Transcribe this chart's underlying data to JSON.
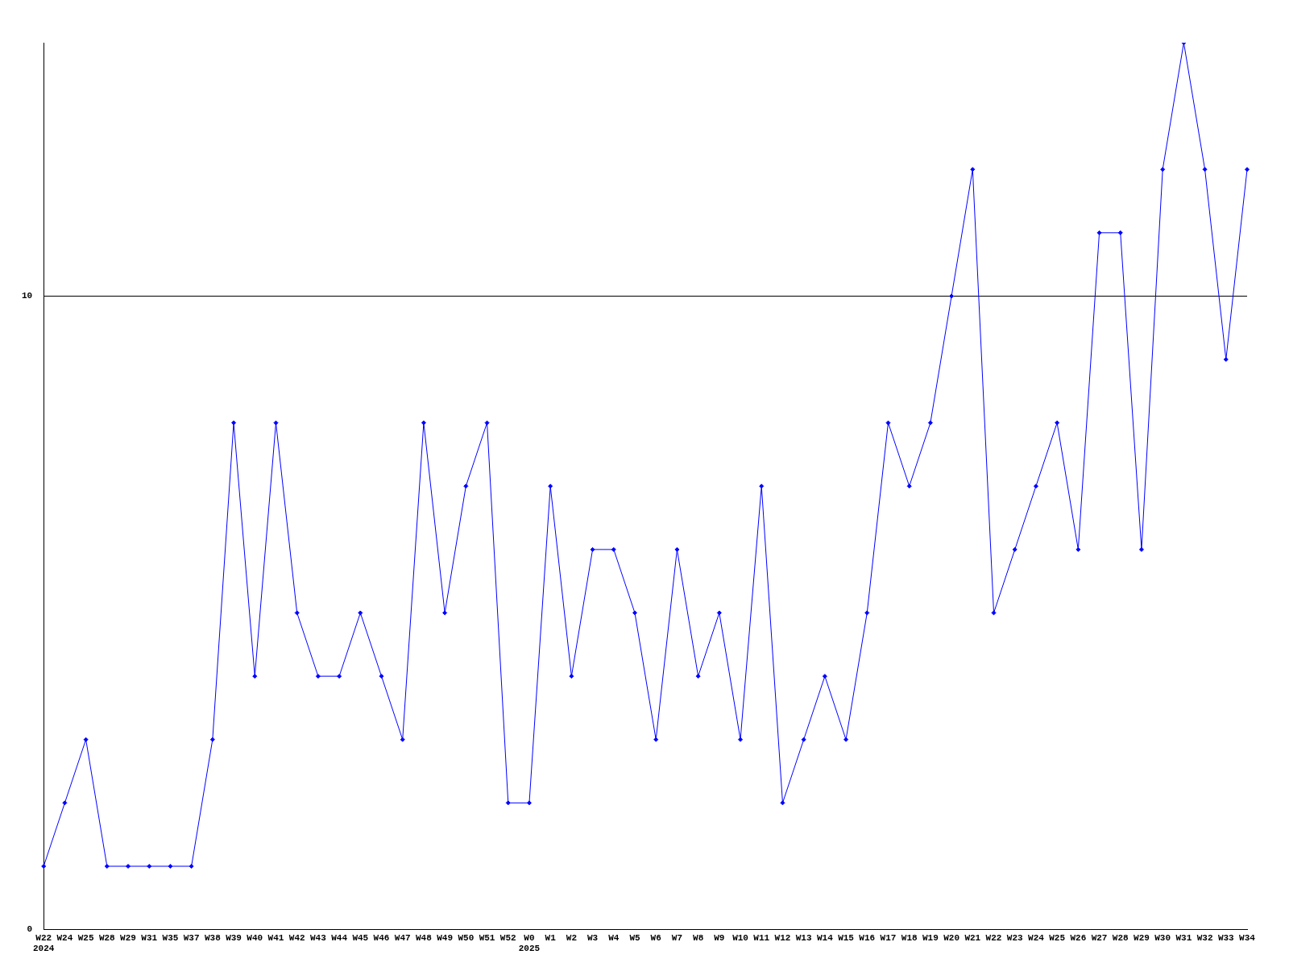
{
  "chart_data": {
    "type": "line",
    "categories": [
      "W22\n2024",
      "W24",
      "W25",
      "W28",
      "W29",
      "W31",
      "W35",
      "W37",
      "W38",
      "W39",
      "W40",
      "W41",
      "W42",
      "W43",
      "W44",
      "W45",
      "W46",
      "W47",
      "W48",
      "W49",
      "W50",
      "W51",
      "W52",
      "W0\n2025",
      "W1",
      "W2",
      "W3",
      "W4",
      "W5",
      "W6",
      "W7",
      "W8",
      "W9",
      "W10",
      "W11",
      "W12",
      "W13",
      "W14",
      "W15",
      "W16",
      "W17",
      "W18",
      "W19",
      "W20",
      "W21",
      "W22",
      "W23",
      "W24",
      "W25",
      "W26",
      "W27",
      "W28",
      "W29",
      "W30",
      "W31",
      "W32",
      "W33",
      "W34"
    ],
    "series": [
      {
        "color": "#0000ff",
        "values": [
          1,
          2,
          3,
          1,
          1,
          1,
          1,
          1,
          3,
          8,
          4,
          8,
          5,
          4,
          4,
          5,
          4,
          3,
          8,
          5,
          7,
          8,
          2,
          2,
          7,
          4,
          6,
          6,
          5,
          3,
          6,
          4,
          5,
          3,
          7,
          2,
          3,
          4,
          3,
          5,
          8,
          7,
          8,
          10,
          12,
          5,
          6,
          7,
          8,
          6,
          11,
          11,
          6,
          12,
          14,
          12,
          9,
          12
        ]
      }
    ],
    "ylim": [
      0,
      14
    ],
    "yticks": [
      0,
      10
    ],
    "grid": "y",
    "legend": false,
    "marker": "diamond",
    "line_style": "solid"
  }
}
